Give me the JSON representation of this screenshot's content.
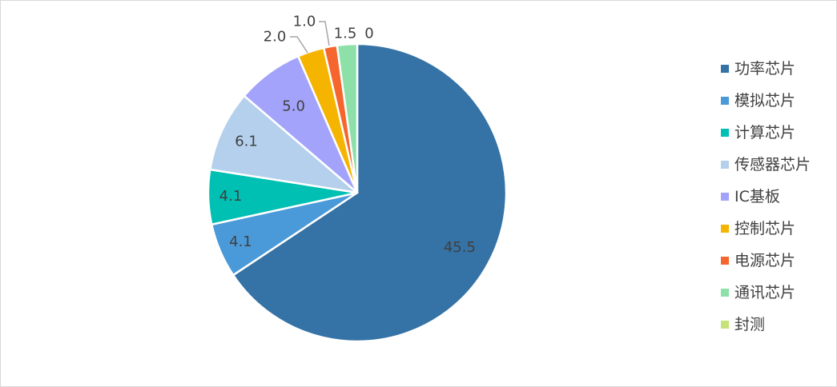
{
  "chart_data": {
    "type": "pie",
    "categories": [
      "功率芯片",
      "模拟芯片",
      "计算芯片",
      "传感器芯片",
      "IC基板",
      "控制芯片",
      "电源芯片",
      "通讯芯片",
      "封测"
    ],
    "values": [
      45.5,
      4.1,
      4.1,
      6.1,
      5.0,
      2.0,
      1.0,
      1.5,
      0
    ],
    "data_labels": [
      "45.5",
      "4.1",
      "4.1",
      "6.1",
      "5.0",
      "2.0",
      "1.0",
      "1.5",
      "0"
    ],
    "colors": [
      "#3572a5",
      "#4a9ad9",
      "#00bfb3",
      "#b4d0ec",
      "#a3a3fb",
      "#f5b400",
      "#f4662d",
      "#8ee0a9",
      "#c6e37a"
    ],
    "legend_position": "right",
    "start_angle_deg": 0,
    "direction": "clockwise"
  }
}
